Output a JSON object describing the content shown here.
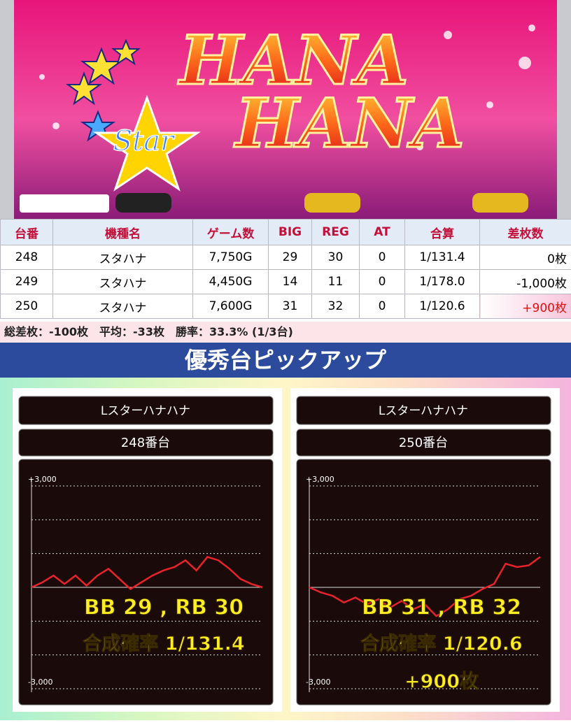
{
  "banner": {
    "title_lines": [
      "HANA",
      "HANA"
    ],
    "subtitle": "Star"
  },
  "table": {
    "header": [
      "台番",
      "機種名",
      "ゲーム数",
      "BIG",
      "REG",
      "AT",
      "合算",
      "差枚数"
    ],
    "rows": [
      [
        "248",
        "スタハナ",
        "7,750G",
        "29",
        "30",
        "0",
        "1/131.4",
        "0枚"
      ],
      [
        "249",
        "スタハナ",
        "4,450G",
        "14",
        "11",
        "0",
        "1/178.0",
        "-1,000枚"
      ],
      [
        "250",
        "スタハナ",
        "7,600G",
        "31",
        "32",
        "0",
        "1/120.6",
        "+900枚"
      ]
    ]
  },
  "summary": "総差枚：-100枚　平均：-33枚　勝率：33.3% (1/3台)",
  "section_title": "優秀台ピックアップ",
  "chart_data": [
    {
      "type": "line",
      "title": "Lスターハナハナ",
      "subtitle": "248番台",
      "ylim": [
        -3000,
        3000
      ],
      "yticks": [
        {
          "value": 3000,
          "label": "+3,000"
        },
        {
          "value": -3000,
          "label": "-3,000"
        }
      ],
      "ygrid": [
        2000,
        1000,
        0,
        -1000,
        -2000
      ],
      "color": "#e8232b",
      "values": [
        0,
        150,
        350,
        100,
        350,
        50,
        350,
        550,
        250,
        -50,
        150,
        350,
        500,
        600,
        800,
        500,
        900,
        800,
        550,
        250,
        100,
        0
      ],
      "annotations": [
        "BB 29 , RB 30",
        "合成確率  1/131.4"
      ]
    },
    {
      "type": "line",
      "title": "Lスターハナハナ",
      "subtitle": "250番台",
      "ylim": [
        -3000,
        3000
      ],
      "yticks": [
        {
          "value": 3000,
          "label": "+3,000"
        },
        {
          "value": -3000,
          "label": "-3,000"
        }
      ],
      "ygrid": [
        2000,
        1000,
        0,
        -1000,
        -2000
      ],
      "color": "#e8232b",
      "values": [
        0,
        -150,
        -250,
        -450,
        -300,
        -500,
        -350,
        -600,
        -400,
        -650,
        -500,
        -850,
        -650,
        -350,
        -250,
        -50,
        100,
        700,
        600,
        650,
        900
      ],
      "annotations": [
        "BB 31 , RB 32",
        "合成確率  1/120.6",
        "+900枚"
      ]
    }
  ]
}
